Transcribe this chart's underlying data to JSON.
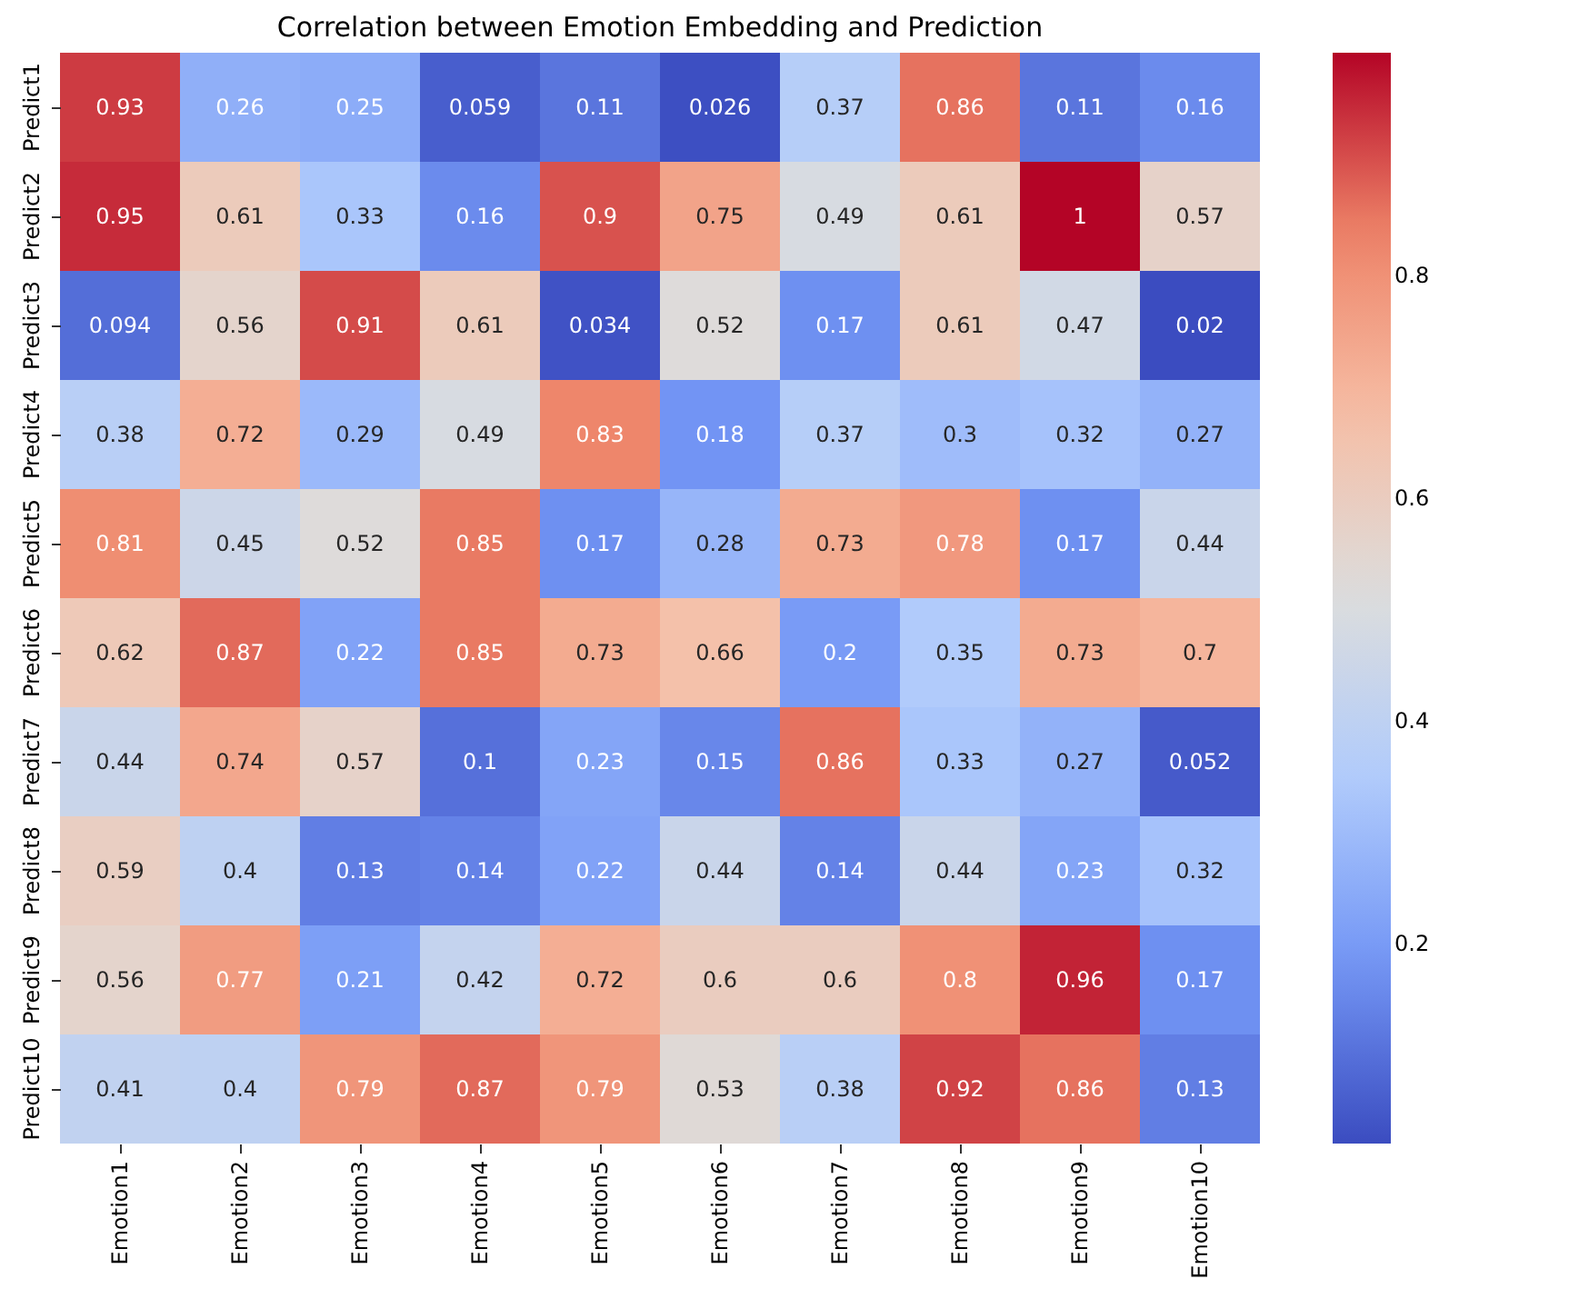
{
  "chart_data": {
    "type": "heatmap",
    "title": "Correlation between Emotion Embedding and Prediction",
    "categories": [
      "Emotion1",
      "Emotion2",
      "Emotion3",
      "Emotion4",
      "Emotion5",
      "Emotion6",
      "Emotion7",
      "Emotion8",
      "Emotion9",
      "Emotion10"
    ],
    "y_categories": [
      "Predict1",
      "Predict2",
      "Predict3",
      "Predict4",
      "Predict5",
      "Predict6",
      "Predict7",
      "Predict8",
      "Predict9",
      "Predict10"
    ],
    "cells": [
      [
        0.93,
        0.26,
        0.25,
        0.059,
        0.11,
        0.026,
        0.37,
        0.86,
        0.11,
        0.16
      ],
      [
        0.95,
        0.61,
        0.33,
        0.16,
        0.9,
        0.75,
        0.49,
        0.61,
        1,
        0.57
      ],
      [
        0.094,
        0.56,
        0.91,
        0.61,
        0.034,
        0.52,
        0.17,
        0.61,
        0.47,
        0.02
      ],
      [
        0.38,
        0.72,
        0.29,
        0.49,
        0.83,
        0.18,
        0.37,
        0.3,
        0.32,
        0.27
      ],
      [
        0.81,
        0.45,
        0.52,
        0.85,
        0.17,
        0.28,
        0.73,
        0.78,
        0.17,
        0.44
      ],
      [
        0.62,
        0.87,
        0.22,
        0.85,
        0.73,
        0.66,
        0.2,
        0.35,
        0.73,
        0.7
      ],
      [
        0.44,
        0.74,
        0.57,
        0.1,
        0.23,
        0.15,
        0.86,
        0.33,
        0.27,
        0.052
      ],
      [
        0.59,
        0.4,
        0.13,
        0.14,
        0.22,
        0.44,
        0.14,
        0.44,
        0.23,
        0.32
      ],
      [
        0.56,
        0.77,
        0.21,
        0.42,
        0.72,
        0.6,
        0.6,
        0.8,
        0.96,
        0.17
      ],
      [
        0.41,
        0.4,
        0.79,
        0.87,
        0.79,
        0.53,
        0.38,
        0.92,
        0.86,
        0.13
      ]
    ],
    "clim": [
      0.02,
      1
    ],
    "cticks": [
      0.2,
      0.4,
      0.6,
      0.8
    ],
    "data_labels": true
  }
}
